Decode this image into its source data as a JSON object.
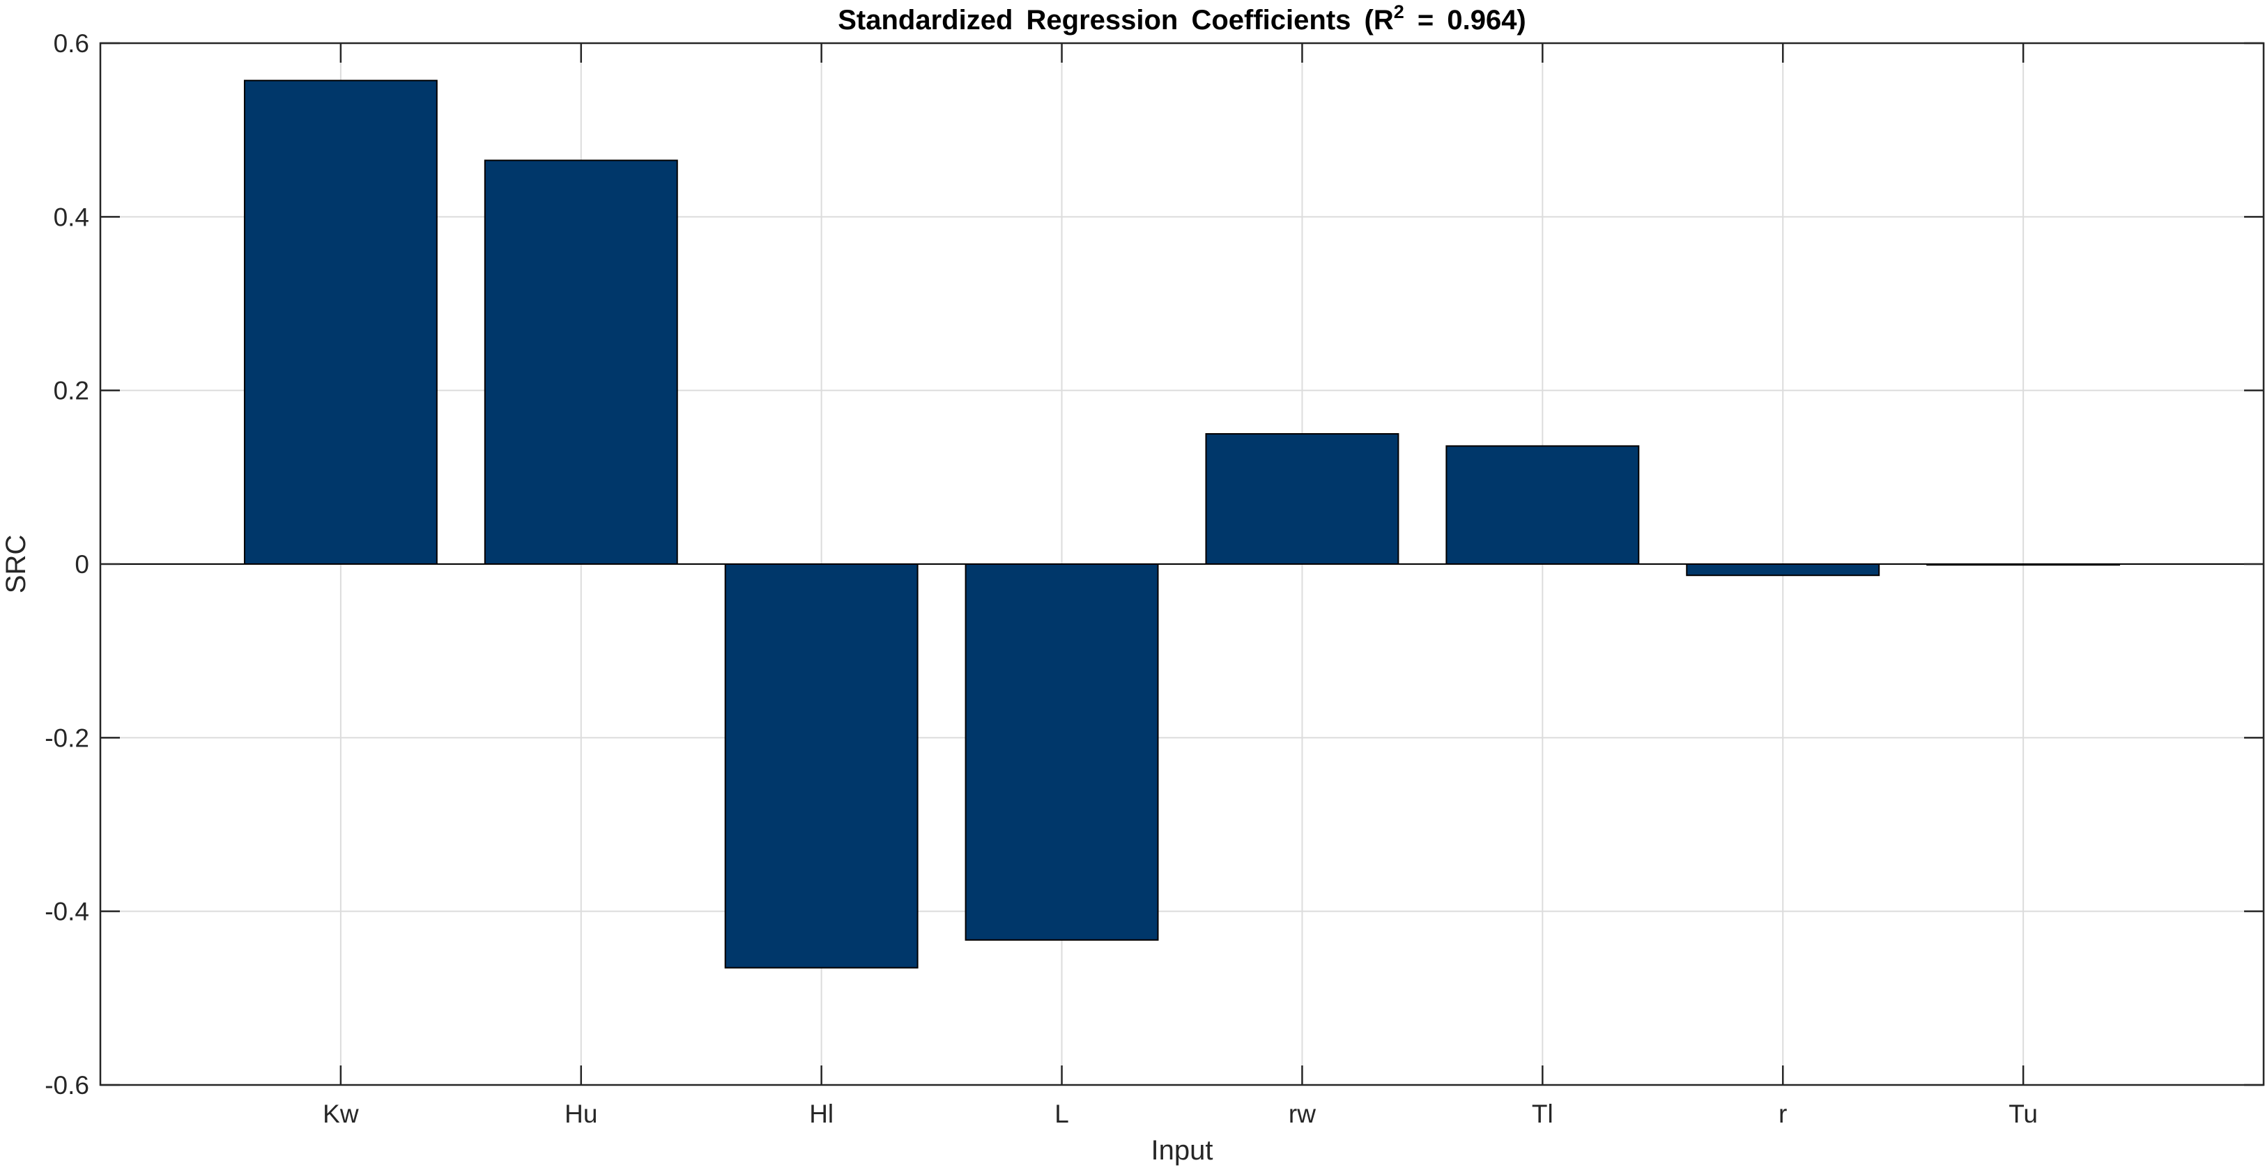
{
  "chart_data": {
    "type": "bar",
    "title": "Standardized Regression Coefficients (R",
    "title_superscript": "2",
    "title_suffix": " = 0.964)",
    "xlabel": "Input",
    "ylabel": "SRC",
    "categories": [
      "Kw",
      "Hu",
      "Hl",
      "L",
      "rw",
      "Tl",
      "r",
      "Tu"
    ],
    "values": [
      0.557,
      0.465,
      -0.465,
      -0.433,
      0.15,
      0.136,
      -0.013,
      -0.001
    ],
    "ylim": [
      -0.6,
      0.6
    ],
    "yticks": [
      -0.6,
      -0.4,
      -0.2,
      0,
      0.2,
      0.4,
      0.6
    ],
    "ytick_labels": [
      "-0.6",
      "-0.4",
      "-0.2",
      "0",
      "0.2",
      "0.4",
      "0.6"
    ],
    "grid": true,
    "bar_color": "#00376A",
    "bar_edge_color": "#000000",
    "axis_color": "#262626",
    "grid_color": "#DCDCDC"
  }
}
